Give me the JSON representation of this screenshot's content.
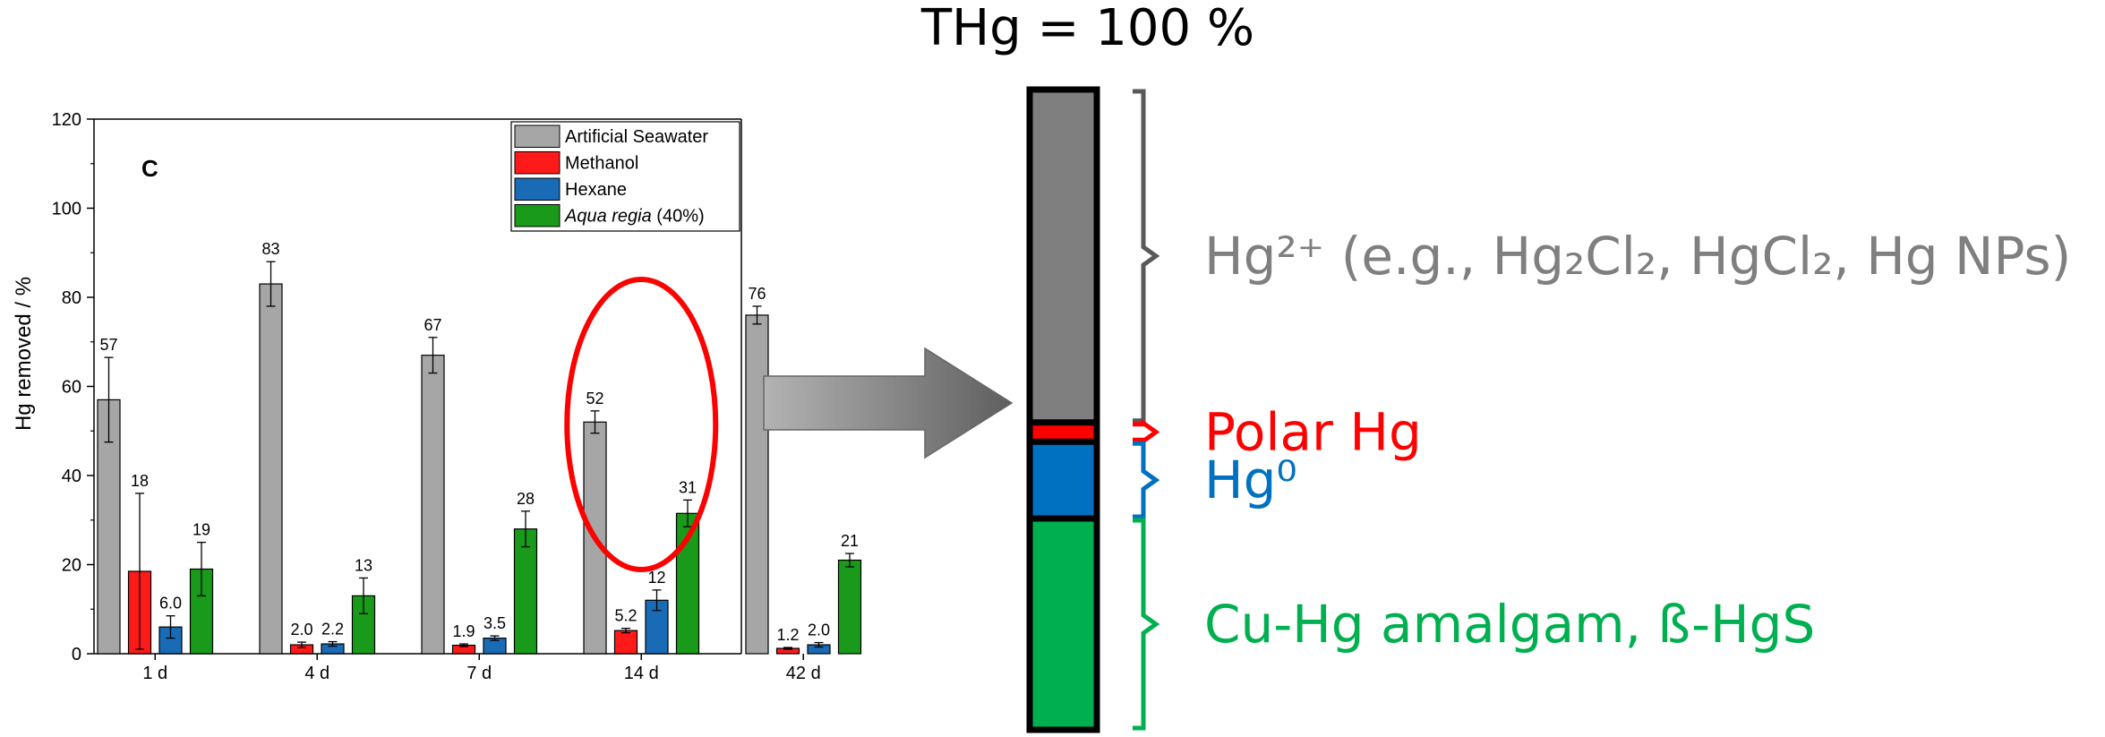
{
  "chart_data": {
    "type": "bar",
    "panel_label": "C",
    "ylabel": "Hg removed / %",
    "ylim": [
      0,
      120
    ],
    "yticks": [
      0,
      20,
      40,
      60,
      80,
      100,
      120
    ],
    "categories": [
      "1 d",
      "4 d",
      "7 d",
      "14 d",
      "42 d"
    ],
    "series": [
      {
        "name": "Artificial Seawater",
        "color": "#a6a6a6",
        "values": [
          57,
          83,
          67,
          52,
          76
        ],
        "errors": [
          9.5,
          5,
          4,
          2.5,
          2
        ],
        "labels": [
          "57",
          "83",
          "67",
          "52",
          "76"
        ]
      },
      {
        "name": "Methanol",
        "color": "#ff1a1a",
        "values": [
          18.5,
          2.0,
          1.9,
          5.2,
          1.2
        ],
        "errors": [
          17.5,
          0.6,
          0.3,
          0.5,
          0.2
        ],
        "labels": [
          "18",
          "2.0",
          "1.9",
          "5.2",
          "1.2"
        ]
      },
      {
        "name": "Hexane",
        "color": "#1a6bb5",
        "values": [
          6.0,
          2.2,
          3.5,
          12,
          2.0
        ],
        "errors": [
          2.5,
          0.5,
          0.5,
          2.3,
          0.5
        ],
        "labels": [
          "6.0",
          "2.2",
          "3.5",
          "12",
          "2.0"
        ]
      },
      {
        "name": "Aqua regia (40%)",
        "name_italic": "Aqua regia",
        "name_rest": " (40%)",
        "color": "#1a9a1a",
        "values": [
          19,
          13,
          28,
          31.5,
          21
        ],
        "errors": [
          6,
          4,
          4,
          3,
          1.5
        ],
        "labels": [
          "19",
          "13",
          "28",
          "31",
          "21"
        ]
      }
    ],
    "highlight_category": "14 d",
    "legend_position": "top-right"
  },
  "arrow": {
    "color": "#7f7f7f"
  },
  "stack_bar": {
    "title": "THg = 100 %",
    "segments": [
      {
        "name": "hg2plus",
        "fraction": 0.52,
        "color": "#7f7f7f",
        "label_color": "#7f7f7f"
      },
      {
        "name": "polar",
        "fraction": 0.03,
        "color": "#ff0000",
        "label_color": "#ff0000"
      },
      {
        "name": "hg0",
        "fraction": 0.12,
        "color": "#0070c0",
        "label_color": "#0070c0"
      },
      {
        "name": "amalgam",
        "fraction": 0.33,
        "color": "#00b050",
        "label_color": "#00b050"
      }
    ],
    "labels": {
      "hg2plus": "Hg²⁺ (e.g., Hg₂Cl₂, HgCl₂, Hg NPs)",
      "polar": "Polar Hg",
      "hg0": "Hg⁰",
      "amalgam": "Cu-Hg amalgam, ß-HgS"
    }
  }
}
